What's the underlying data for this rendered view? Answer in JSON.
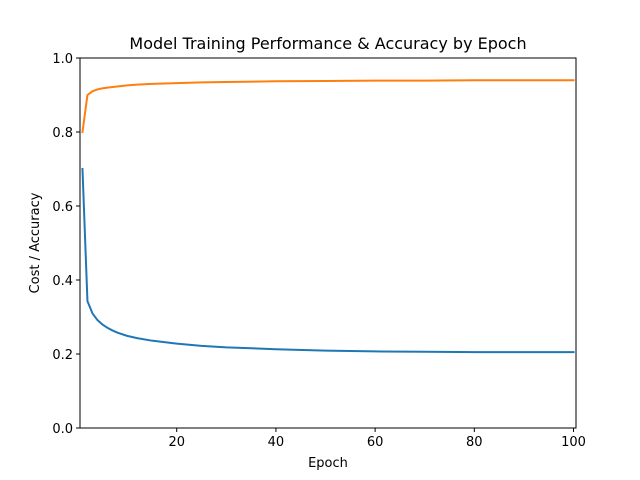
{
  "chart_data": {
    "type": "line",
    "title": "Model Training Performance & Accuracy by Epoch",
    "xlabel": "Epoch",
    "ylabel": "Cost / Accuracy",
    "xlim": [
      0.5,
      100.5
    ],
    "ylim": [
      0.0,
      1.0
    ],
    "xticks": [
      20,
      40,
      60,
      80,
      100
    ],
    "yticks": [
      0.0,
      0.2,
      0.4,
      0.6,
      0.8,
      1.0
    ],
    "ytick_labels": [
      "0.0",
      "0.2",
      "0.4",
      "0.6",
      "0.8",
      "1.0"
    ],
    "grid": false,
    "legend": false,
    "series": [
      {
        "color": "#1f77b4",
        "x": [
          1,
          2,
          3,
          4,
          5,
          6,
          7,
          8,
          10,
          12,
          15,
          20,
          25,
          30,
          40,
          50,
          60,
          70,
          80,
          90,
          100
        ],
        "values": [
          0.7,
          0.343,
          0.31,
          0.292,
          0.28,
          0.271,
          0.264,
          0.258,
          0.249,
          0.243,
          0.236,
          0.228,
          0.222,
          0.218,
          0.213,
          0.209,
          0.207,
          0.206,
          0.205,
          0.205,
          0.205
        ]
      },
      {
        "color": "#ff7f0e",
        "x": [
          1,
          2,
          3,
          4,
          5,
          6,
          8,
          10,
          12,
          15,
          20,
          25,
          30,
          40,
          50,
          60,
          70,
          80,
          90,
          100
        ],
        "values": [
          0.8,
          0.9,
          0.91,
          0.915,
          0.918,
          0.92,
          0.923,
          0.926,
          0.928,
          0.93,
          0.932,
          0.934,
          0.935,
          0.937,
          0.938,
          0.939,
          0.939,
          0.94,
          0.94,
          0.94
        ]
      }
    ]
  }
}
